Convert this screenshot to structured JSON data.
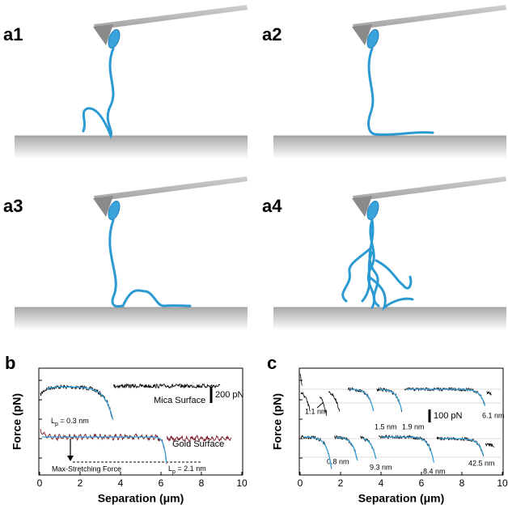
{
  "panels": [
    "a1",
    "a2",
    "a3",
    "a4"
  ],
  "b": {
    "label": "b",
    "y_label": "Force (pN)",
    "x_label": "Separation (μm)",
    "xlim": [
      0,
      10
    ],
    "xticks": [
      0,
      2,
      4,
      6,
      8,
      10
    ],
    "mica": "Mica Surface",
    "gold": "Gold Surface",
    "scale_bar": "200 pN",
    "max_force": "Max-Stretching Force",
    "lp_top": {
      "main": "L",
      "sub": "p",
      "rest": " = 0.3 nm"
    },
    "lp_bottom": {
      "main": "L",
      "sub": "p",
      "rest": " = 2.1 nm"
    }
  },
  "c": {
    "label": "c",
    "y_label": "Force (pN)",
    "x_label": "Separation (μm)",
    "xlim": [
      0,
      10
    ],
    "xticks": [
      0,
      2,
      4,
      6,
      8,
      10
    ],
    "scale_bar": "100 pN",
    "lengths": [
      "1.1 nm",
      "1.5 nm",
      "1.9 nm",
      "6.1 nm",
      "0.8 nm",
      "9.3 nm",
      "8.4 nm",
      "42.5 nm"
    ]
  }
}
